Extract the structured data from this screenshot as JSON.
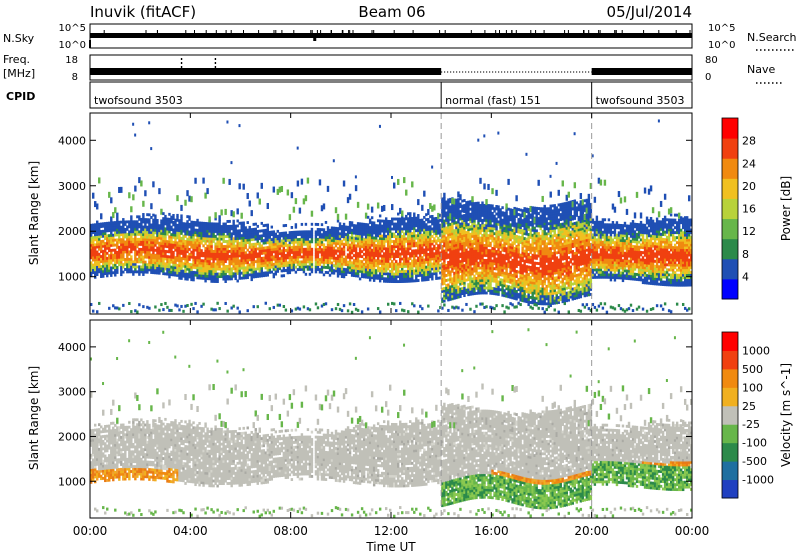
{
  "header": {
    "title": "Inuvik (fitACF)",
    "beam": "Beam 06",
    "date": "05/Jul/2014"
  },
  "nsky_panel": {
    "left_label": "N.Sky",
    "left_ticks": [
      "10^5",
      "10^0"
    ],
    "right_ticks": [
      "10^5",
      "10^0"
    ],
    "right_label": "N.Search"
  },
  "freq_panel": {
    "left_label_1": "Freq.",
    "left_label_2": "[MHz]",
    "left_ticks": [
      "18",
      "8"
    ],
    "right_ticks": [
      "80",
      "0"
    ],
    "right_label": "Nave"
  },
  "cpid_panel": {
    "label": "CPID",
    "segments": [
      {
        "name": "twofsound 3503",
        "start_hour": 0,
        "end_hour": 14
      },
      {
        "name": "normal (fast) 151",
        "start_hour": 14,
        "end_hour": 20
      },
      {
        "name": "twofsound 3503",
        "start_hour": 20,
        "end_hour": 24
      }
    ]
  },
  "x_axis": {
    "label": "Time UT",
    "ticks": [
      "00:00",
      "04:00",
      "08:00",
      "12:00",
      "16:00",
      "20:00",
      "00:00"
    ],
    "range_hours": [
      0,
      24
    ]
  },
  "chart_data": [
    {
      "type": "heatmap",
      "title": "",
      "xlabel": "Time UT",
      "ylabel": "Slant Range [km]",
      "xlim_hours": [
        0,
        24
      ],
      "ylim_km": [
        180,
        4600
      ],
      "yticks": [
        1000,
        2000,
        3000,
        4000
      ],
      "colorbar_label": "Power [dB]",
      "colorbar_ticks": [
        "28",
        "24",
        "20",
        "16",
        "12",
        "8",
        "4"
      ],
      "colorbar_colors": [
        "#0000ff",
        "#1f4fb4",
        "#2c8a4a",
        "#67b64a",
        "#b8d23a",
        "#f0c020",
        "#f08a10",
        "#f04010",
        "#ff0000"
      ],
      "mode_changes_hours": [
        14,
        20
      ]
    },
    {
      "type": "heatmap",
      "title": "",
      "xlabel": "Time UT",
      "ylabel": "Slant Range [km]",
      "xlim_hours": [
        0,
        24
      ],
      "ylim_km": [
        180,
        4600
      ],
      "yticks": [
        1000,
        2000,
        3000,
        4000
      ],
      "colorbar_label": "Velocity [m s^-1]",
      "colorbar_ticks": [
        "1000",
        "500",
        "100",
        "25",
        "-25",
        "-100",
        "-500",
        "-1000"
      ],
      "colorbar_colors": [
        "#2040c0",
        "#1f6fa0",
        "#2c8a4a",
        "#67b64a",
        "#c0c0b8",
        "#f0b020",
        "#f08a10",
        "#f04010",
        "#ff0000"
      ],
      "mode_changes_hours": [
        14,
        20
      ]
    }
  ]
}
